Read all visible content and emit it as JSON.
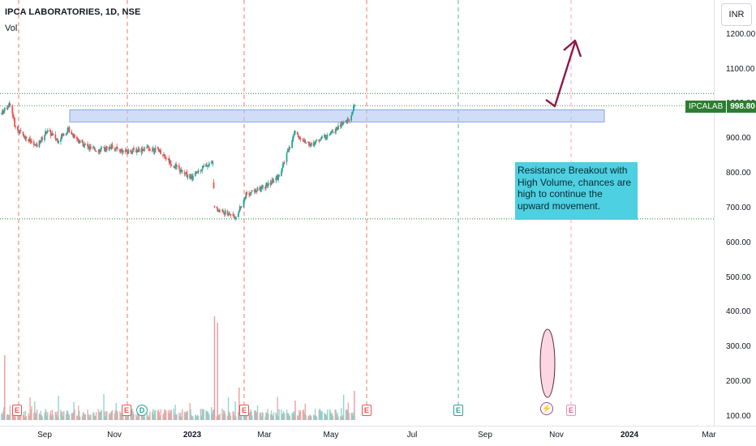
{
  "header": {
    "title": "IPCA LABORATORIES, 1D, NSE",
    "volume_label": "Vol"
  },
  "currency_button": "INR",
  "symbol_tag": {
    "symbol": "IPCALAB",
    "price": "998.80"
  },
  "annotation": {
    "text": "Resistance Breakout with High Volume, chances are high to continue the upward movement."
  },
  "markers": [
    {
      "label": "E",
      "kind": "earnings",
      "color": "red"
    },
    {
      "label": "E",
      "kind": "earnings",
      "color": "red"
    },
    {
      "label": "D",
      "kind": "dividend",
      "color": "green"
    },
    {
      "label": "E",
      "kind": "earnings",
      "color": "red"
    },
    {
      "label": "E",
      "kind": "earnings",
      "color": "red"
    },
    {
      "label": "E",
      "kind": "earnings",
      "color": "green"
    },
    {
      "label": "E",
      "kind": "earnings-upcoming",
      "color": "pink"
    }
  ],
  "colors": {
    "up": "#26a69a",
    "down": "#ef5350",
    "zone": "#b3c6f2",
    "arrow": "#8b1a4a",
    "annotation_bg": "#4dd0e1"
  },
  "chart_data": {
    "type": "candlestick",
    "title": "IPCA LABORATORIES, 1D, NSE",
    "xlabel": "",
    "ylabel": "",
    "x_ticks": [
      "Sep",
      "Nov",
      "2023",
      "Mar",
      "May",
      "Jul",
      "Sep",
      "Nov",
      "2024",
      "Mar"
    ],
    "y_ticks": [
      "1200.00",
      "1100.00",
      "1000.00",
      "900.00",
      "800.00",
      "700.00",
      "600.00",
      "500.00",
      "400.00",
      "300.00",
      "200.00",
      "100.00"
    ],
    "ylim": [
      100,
      1250
    ],
    "last_price": 998.8,
    "resistance_zone": [
      951,
      986
    ],
    "support_line": 672,
    "upper_line": 1033,
    "series": [
      {
        "name": "Price",
        "approx_close_path": [
          {
            "x": "2022-07-25",
            "y": 975
          },
          {
            "x": "2022-08-05",
            "y": 1005
          },
          {
            "x": "2022-08-12",
            "y": 935
          },
          {
            "x": "2022-08-26",
            "y": 905
          },
          {
            "x": "2022-09-08",
            "y": 880
          },
          {
            "x": "2022-09-22",
            "y": 925
          },
          {
            "x": "2022-10-06",
            "y": 900
          },
          {
            "x": "2022-10-20",
            "y": 930
          },
          {
            "x": "2022-11-03",
            "y": 895
          },
          {
            "x": "2022-11-17",
            "y": 875
          },
          {
            "x": "2022-12-01",
            "y": 870
          },
          {
            "x": "2022-12-15",
            "y": 880
          },
          {
            "x": "2023-01-02",
            "y": 865
          },
          {
            "x": "2023-01-16",
            "y": 870
          },
          {
            "x": "2023-02-01",
            "y": 875
          },
          {
            "x": "2023-02-15",
            "y": 870
          },
          {
            "x": "2023-03-01",
            "y": 835
          },
          {
            "x": "2023-03-15",
            "y": 810
          },
          {
            "x": "2023-03-29",
            "y": 790
          },
          {
            "x": "2023-04-12",
            "y": 820
          },
          {
            "x": "2023-04-26",
            "y": 835
          },
          {
            "x": "2023-04-28",
            "y": 700
          },
          {
            "x": "2023-05-12",
            "y": 690
          },
          {
            "x": "2023-05-26",
            "y": 680
          },
          {
            "x": "2023-06-09",
            "y": 745
          },
          {
            "x": "2023-06-23",
            "y": 755
          },
          {
            "x": "2023-07-07",
            "y": 770
          },
          {
            "x": "2023-07-21",
            "y": 795
          },
          {
            "x": "2023-08-04",
            "y": 880
          },
          {
            "x": "2023-08-11",
            "y": 925
          },
          {
            "x": "2023-08-18",
            "y": 900
          },
          {
            "x": "2023-09-01",
            "y": 885
          },
          {
            "x": "2023-09-15",
            "y": 905
          },
          {
            "x": "2023-09-29",
            "y": 920
          },
          {
            "x": "2023-10-13",
            "y": 950
          },
          {
            "x": "2023-10-23",
            "y": 965
          },
          {
            "x": "2023-10-27",
            "y": 998.8
          }
        ]
      },
      {
        "name": "Vol",
        "approx_volume_spikes": [
          {
            "x": "2022-07-29",
            "y": 1.0
          },
          {
            "x": "2023-04-28",
            "y": 1.6
          },
          {
            "x": "2023-05-02",
            "y": 1.5
          },
          {
            "x": "2023-05-30",
            "y": 0.5
          },
          {
            "x": "2023-08-11",
            "y": 0.3
          },
          {
            "x": "2023-10-27",
            "y": 0.45
          }
        ]
      }
    ]
  }
}
